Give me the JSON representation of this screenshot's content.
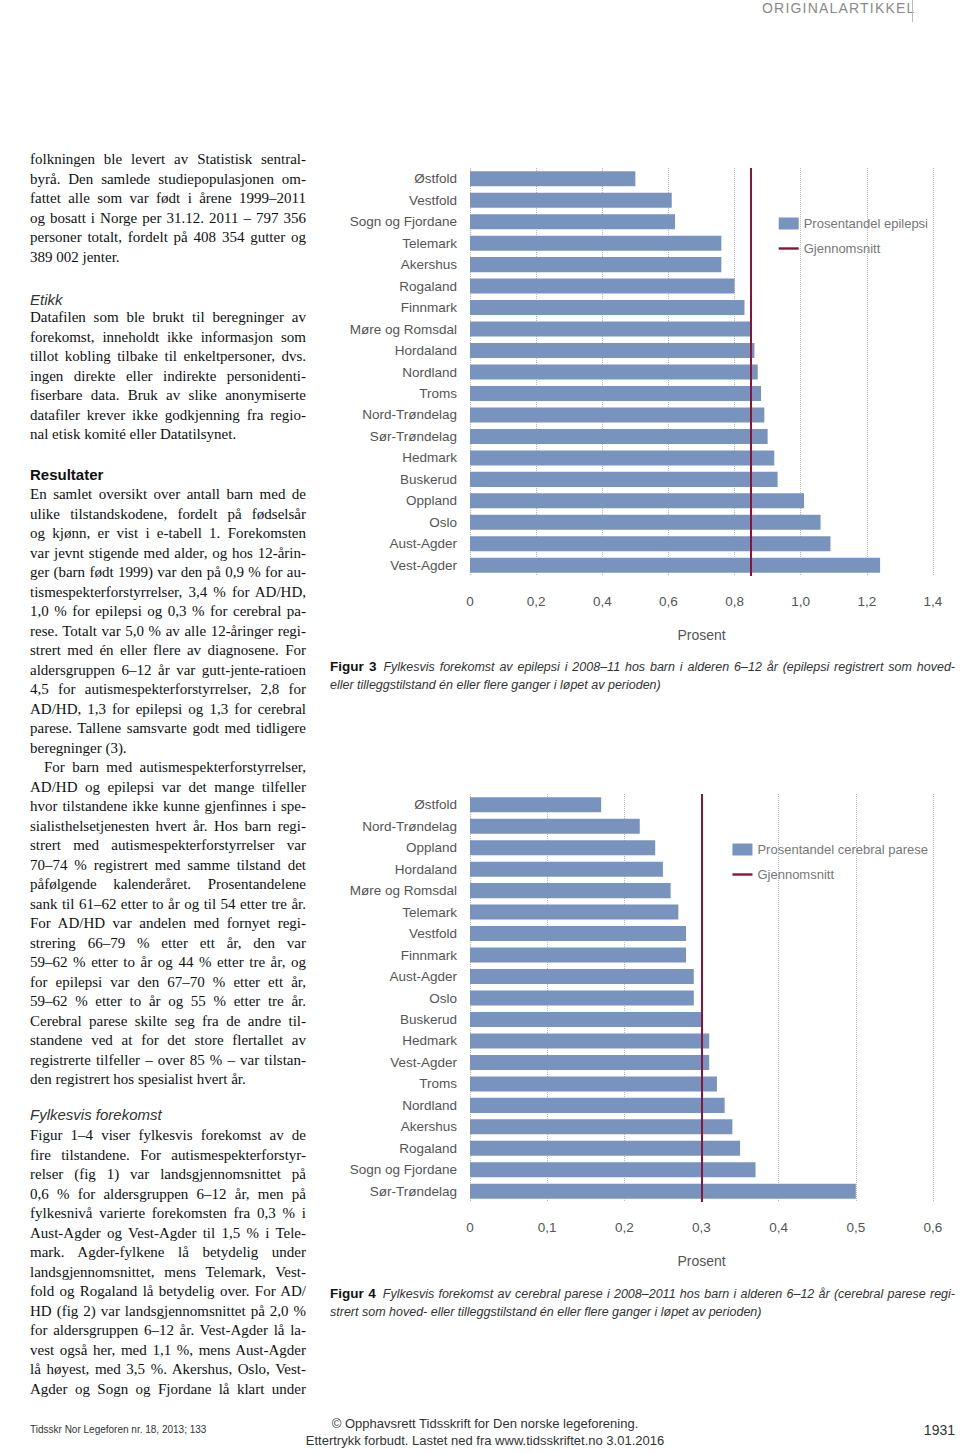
{
  "header": "ORIGINALARTIKKEL",
  "left_column": [
    {
      "lines": [
        "folkningen ble levert av Statistisk sentral-",
        "byrå. Den samlede studiepopulasjonen om-",
        "fattet alle som var født i årene 1999–2011",
        "og bosatt i Norge per 31.12. 2011 – 797 356",
        "personer totalt, fordelt på 408 354 gutter og",
        "389 002 jenter."
      ]
    },
    {
      "heading": "Etikk"
    },
    {
      "lines": [
        "Datafilen som ble brukt til beregninger av",
        "forekomst, inneholdt ikke informasjon som",
        "tillot kobling tilbake til enkeltpersoner, dvs.",
        "ingen direkte eller indirekte personidenti-",
        "fiserbare data. Bruk av slike anonymiserte",
        "datafiler krever ikke godkjenning fra regio-",
        "nal etisk komité eller Datatilsynet."
      ]
    },
    {
      "heading": "Resultater"
    },
    {
      "lines": [
        "En samlet oversikt over antall barn med de",
        "ulike tilstandskodene, fordelt på fødselsår",
        "og kjønn, er vist i e-tabell 1. Forekomsten",
        "var jevnt stigende med alder, og hos 12-årin-",
        "ger (barn født 1999) var den på 0,9 % for au-",
        "tismespekterforstyrrelser, 3,4 % for AD/HD,",
        "1,0 % for epilepsi og 0,3 % for cerebral pa-",
        "rese. Totalt var 5,0 % av alle 12-åringer regi-",
        "strert med én eller flere av diagnosene. For",
        "aldersgruppen 6–12 år var gutt-jente-ratioen",
        "4,5 for autismespekterforstyrrelser, 2,8 for",
        "AD/HD, 1,3 for epilepsi og 1,3 for cerebral",
        "parese. Tallene samsvarte godt med tidligere",
        "beregninger (3)."
      ]
    },
    {
      "lines": [
        "For barn med autismespekterforstyrrelser,",
        "AD/HD og epilepsi var det mange tilfeller",
        "hvor tilstandene ikke kunne gjenfinnes i spe-",
        "sialisthelsetjenesten hvert år. Hos barn regi-",
        "strert med autismespekterforstyrrelser var",
        "70–74 % registrert med samme tilstand det",
        "påfølgende kalenderåret. Prosentandelene",
        "sank til 61–62 etter to år og til 54 etter tre år.",
        "For AD/HD var andelen med fornyet regi-",
        "strering 66–79 % etter ett år, den var",
        "59–62 % etter to år og 44 % etter tre år, og",
        "for epilepsi var den 67–70 % etter ett år,",
        "59–62 % etter to år og 55 % etter tre år.",
        "Cerebral parese skilte seg fra de andre til-",
        "standene ved at for det store flertallet av",
        "registrerte tilfeller – over 85 % – var tilstan-",
        "den registrert hos spesialist hvert år."
      ]
    },
    {
      "heading": "Fylkesvis forekomst"
    },
    {
      "lines": [
        "Figur 1–4 viser fylkesvis forekomst av de",
        "fire tilstandene. For autismespekterforstyr-",
        "relser (fig 1) var landsgjennomsnittet på",
        "0,6 % for aldersgruppen 6–12 år, men på",
        "fylkesnivå varierte forekomsten fra 0,3 % i",
        "Aust-Agder og Vest-Agder til 1,5 % i Tele-",
        "mark. Agder-fylkene lå betydelig under",
        "landsgjennomsnittet, mens Telemark, Vest-",
        "fold og Rogaland lå betydelig over. For AD/",
        "HD (fig 2) var landsgjennomsnittet på 2,0 %",
        "for aldersgruppen 6–12 år. Vest-Agder lå la-",
        "vest også her, med 1,1 %, mens Aust-Agder",
        "lå høyest, med 3,5 %. Akershus, Oslo, Vest-",
        "Agder og Sogn og Fjordane lå klart under"
      ]
    }
  ],
  "chart_data": [
    {
      "type": "bar",
      "orientation": "horizontal",
      "categories": [
        "Østfold",
        "Vestfold",
        "Sogn og Fjordane",
        "Telemark",
        "Akershus",
        "Rogaland",
        "Finnmark",
        "Møre og Romsdal",
        "Hordaland",
        "Nordland",
        "Troms",
        "Nord-Trøndelag",
        "Sør-Trøndelag",
        "Hedmark",
        "Buskerud",
        "Oppland",
        "Oslo",
        "Aust-Agder",
        "Vest-Agder"
      ],
      "series": [
        {
          "name": "Prosentandel epilepsi",
          "color": "#7893be",
          "values": [
            0.5,
            0.61,
            0.62,
            0.76,
            0.76,
            0.8,
            0.83,
            0.85,
            0.86,
            0.87,
            0.88,
            0.89,
            0.9,
            0.92,
            0.93,
            1.01,
            1.06,
            1.09,
            1.24
          ]
        }
      ],
      "average": {
        "name": "Gjennomsnitt",
        "value": 0.85,
        "color": "#8b1538"
      },
      "xlabel": "Prosent",
      "xlim": [
        0,
        1.4
      ],
      "xticks": [
        0,
        {
          "value": 0.2,
          "label": "0,2"
        },
        {
          "value": 0.4,
          "label": "0,4"
        },
        {
          "value": 0.6,
          "label": "0,6"
        },
        {
          "value": 0.8,
          "label": "0,8"
        },
        {
          "value": 1.0,
          "label": "1,0"
        },
        {
          "value": 1.2,
          "label": "1,2"
        },
        {
          "value": 1.4,
          "label": "1,4"
        }
      ],
      "grid": true,
      "legend": "upper right",
      "caption": {
        "label": "Figur 3",
        "lines": [
          "Fylkesvis forekomst av epilepsi i 2008–11 hos barn i alderen 6–12 år (epilepsi registrert som hoved-",
          "eller tilleggstilstand én eller flere ganger i løpet av perioden)"
        ]
      }
    },
    {
      "type": "bar",
      "orientation": "horizontal",
      "categories": [
        "Østfold",
        "Nord-Trøndelag",
        "Oppland",
        "Hordaland",
        "Møre og Romsdal",
        "Telemark",
        "Vestfold",
        "Finnmark",
        "Aust-Agder",
        "Oslo",
        "Buskerud",
        "Hedmark",
        "Vest-Agder",
        "Troms",
        "Nordland",
        "Akershus",
        "Rogaland",
        "Sogn og Fjordane",
        "Sør-Trøndelag"
      ],
      "series": [
        {
          "name": "Prosentandel cerebral parese",
          "color": "#7893be",
          "values": [
            0.17,
            0.22,
            0.24,
            0.25,
            0.26,
            0.27,
            0.28,
            0.28,
            0.29,
            0.29,
            0.3,
            0.31,
            0.31,
            0.32,
            0.33,
            0.34,
            0.35,
            0.37,
            0.5
          ]
        }
      ],
      "average": {
        "name": "Gjennomsnitt",
        "value": 0.3,
        "color": "#8b1538"
      },
      "xlabel": "Prosent",
      "xlim": [
        0,
        0.6
      ],
      "xticks": [
        0,
        {
          "value": 0.1,
          "label": "0,1"
        },
        {
          "value": 0.2,
          "label": "0,2"
        },
        {
          "value": 0.3,
          "label": "0,3"
        },
        {
          "value": 0.4,
          "label": "0,4"
        },
        {
          "value": 0.5,
          "label": "0,5"
        },
        {
          "value": 0.6,
          "label": "0,6"
        }
      ],
      "grid": true,
      "legend": "upper right",
      "caption": {
        "label": "Figur 4",
        "lines": [
          "Fylkesvis forekomst av cerebral parese i 2008–2011 hos barn i alderen 6–12 år (cerebral parese regi-",
          "strert som hoved- eller tilleggstilstand én eller flere ganger i løpet av perioden)"
        ]
      }
    }
  ],
  "footer": {
    "journal": "Tidsskr Nor Legeforen nr. 18, 2013; 133",
    "copyright": [
      "© Opphavsrett Tidsskrift for Den norske legeforening.",
      "Ettertrykk forbudt. Lastet ned fra www.tidsskriftet.no 3.01.2016"
    ],
    "page": 1931
  }
}
